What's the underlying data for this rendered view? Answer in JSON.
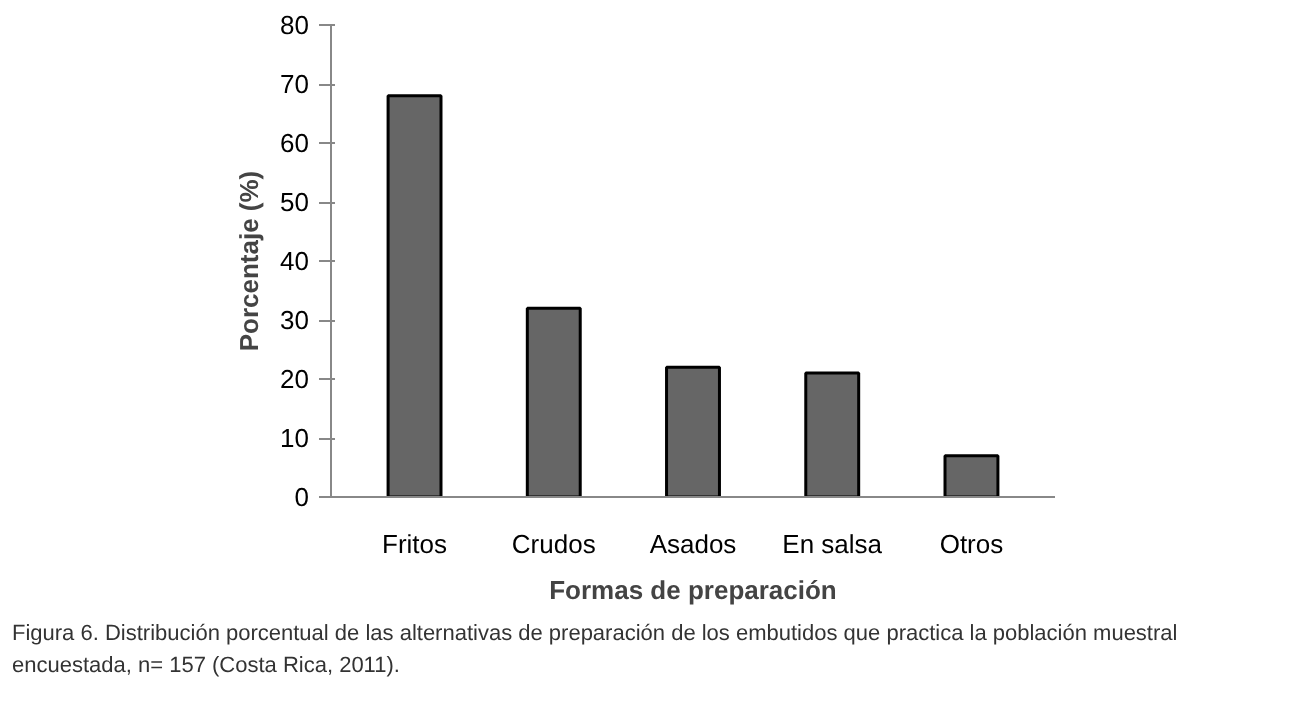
{
  "chart_data": {
    "type": "bar",
    "xlabel": "Formas de preparación",
    "ylabel": "Porcentaje (%)",
    "categories": [
      "Fritos",
      "Crudos",
      "Asados",
      "En salsa",
      "Otros"
    ],
    "values": [
      68,
      32,
      22,
      21,
      7
    ],
    "color": "#666666",
    "ylim": [
      0,
      80
    ],
    "yticks": [
      0,
      10,
      20,
      30,
      40,
      50,
      60,
      70,
      80
    ],
    "grid": false,
    "annotations": [
      "Figura 6. Distribución porcentual de las alternativas de preparación de los embutidos que practica la población muestral encuestada, n= 157 (Costa Rica, 2011)."
    ]
  }
}
